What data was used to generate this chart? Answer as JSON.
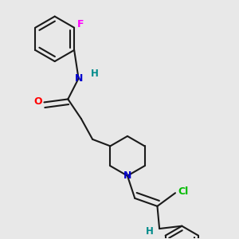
{
  "background_color": "#e8e8e8",
  "bond_color": "#1a1a1a",
  "atom_colors": {
    "F": "#ff00ff",
    "N": "#0000cd",
    "O": "#ff0000",
    "Cl": "#00bb00",
    "H_label": "#008b8b",
    "C": "#1a1a1a"
  },
  "figsize": [
    3.0,
    3.0
  ],
  "dpi": 100
}
